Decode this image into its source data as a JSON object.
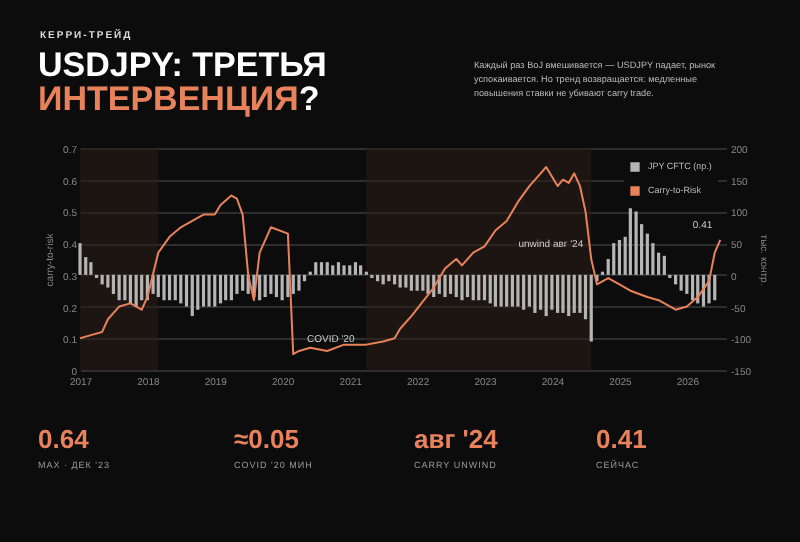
{
  "chart_data": [
    {
      "type": "line",
      "title": "USDJPY: ТРЕТЬЯ ИНТЕРВЕНЦИЯ?",
      "subtitle": "Каждый раз BoJ вмешивается — USDJPY падает, рынок успокаивается. Но тренд возвращается: медленные повышения ставки не убивают carry trade.",
      "ylabel": "carry-to-risk",
      "y2label": "тыс. контр.",
      "annotations": [
        "КЕРРИ-ТРЕЙД",
        {
          "text": "COVID '20",
          "x": "2020-04",
          "y": 0.05
        },
        {
          "text": "unwind авг '24",
          "x": "2024-08",
          "y": 0.35
        },
        {
          "text": "0.41",
          "x": "2026-07",
          "y": 0.41
        }
      ],
      "xlim": [
        "2017-01",
        "2026-08"
      ],
      "xticks": [
        "2017",
        "2018",
        "2019",
        "2020",
        "2021",
        "2022",
        "2023",
        "2024",
        "2025",
        "2026"
      ],
      "ylim": [
        0,
        0.7
      ],
      "yticks": [
        0,
        0.1,
        0.2,
        0.3,
        0.4,
        0.5,
        0.6,
        0.7
      ],
      "y2lim": [
        -150,
        200
      ],
      "y2ticks": [
        -150,
        -100,
        -50,
        0,
        50,
        100,
        150,
        200
      ],
      "grid": "y",
      "legend": "top right",
      "bands": [
        {
          "axis": "x",
          "from": "2017-01",
          "to": "2018-03",
          "color": "#2c1e16"
        },
        {
          "axis": "x",
          "from": "2021-04",
          "to": "2024-08",
          "color": "#2c1e16"
        }
      ],
      "series": [
        {
          "name": "JPY CFTC (пр.)",
          "type": "bar",
          "axis": "y2",
          "color": "#b5b5b5",
          "x": [
            "2017-01",
            "2017-02",
            "2017-03",
            "2017-04",
            "2017-05",
            "2017-06",
            "2017-07",
            "2017-08",
            "2017-09",
            "2017-10",
            "2017-11",
            "2017-12",
            "2018-01",
            "2018-02",
            "2018-03",
            "2018-04",
            "2018-05",
            "2018-06",
            "2018-07",
            "2018-08",
            "2018-09",
            "2018-10",
            "2018-11",
            "2018-12",
            "2019-01",
            "2019-02",
            "2019-03",
            "2019-04",
            "2019-05",
            "2019-06",
            "2019-07",
            "2019-08",
            "2019-09",
            "2019-10",
            "2019-11",
            "2019-12",
            "2020-01",
            "2020-02",
            "2020-03",
            "2020-04",
            "2020-05",
            "2020-06",
            "2020-07",
            "2020-08",
            "2020-09",
            "2020-10",
            "2020-11",
            "2020-12",
            "2021-01",
            "2021-02",
            "2021-03",
            "2021-04",
            "2021-05",
            "2021-06",
            "2021-07",
            "2021-08",
            "2021-09",
            "2021-10",
            "2021-11",
            "2021-12",
            "2022-01",
            "2022-02",
            "2022-03",
            "2022-04",
            "2022-05",
            "2022-06",
            "2022-07",
            "2022-08",
            "2022-09",
            "2022-10",
            "2022-11",
            "2022-12",
            "2023-01",
            "2023-02",
            "2023-03",
            "2023-04",
            "2023-05",
            "2023-06",
            "2023-07",
            "2023-08",
            "2023-09",
            "2023-10",
            "2023-11",
            "2023-12",
            "2024-01",
            "2024-02",
            "2024-03",
            "2024-04",
            "2024-05",
            "2024-06",
            "2024-07",
            "2024-08",
            "2024-09",
            "2024-10",
            "2024-11",
            "2024-12",
            "2025-01",
            "2025-02",
            "2025-03",
            "2025-04",
            "2025-05",
            "2025-06",
            "2025-07",
            "2025-08",
            "2025-09",
            "2025-10",
            "2025-11",
            "2025-12",
            "2026-01",
            "2026-02",
            "2026-03",
            "2026-04",
            "2026-05",
            "2026-06"
          ],
          "values": [
            50,
            28,
            20,
            -5,
            -15,
            -20,
            -30,
            -40,
            -40,
            -45,
            -50,
            -40,
            -40,
            -30,
            -35,
            -40,
            -40,
            -40,
            -45,
            -50,
            -65,
            -55,
            -50,
            -50,
            -50,
            -45,
            -40,
            -40,
            -30,
            -25,
            -30,
            -35,
            -40,
            -35,
            -30,
            -35,
            -40,
            -35,
            -30,
            -25,
            -10,
            5,
            20,
            20,
            20,
            15,
            20,
            15,
            15,
            20,
            15,
            5,
            -5,
            -10,
            -15,
            -10,
            -15,
            -20,
            -20,
            -25,
            -25,
            -25,
            -30,
            -35,
            -30,
            -35,
            -30,
            -35,
            -40,
            -35,
            -40,
            -40,
            -40,
            -45,
            -50,
            -50,
            -50,
            -50,
            -50,
            -55,
            -50,
            -60,
            -55,
            -65,
            -55,
            -60,
            -60,
            -65,
            -60,
            -60,
            -70,
            -105,
            -10,
            5,
            25,
            50,
            55,
            60,
            105,
            100,
            80,
            65,
            50,
            35,
            30,
            -5,
            -15,
            -25,
            -30,
            -40,
            -45,
            -50,
            -45,
            -40
          ]
        },
        {
          "name": "Carry-to-Risk",
          "type": "line",
          "color": "#e8825a",
          "x": [
            "2017-01",
            "2017-03",
            "2017-05",
            "2017-06",
            "2017-08",
            "2017-10",
            "2017-12",
            "2018-01",
            "2018-03",
            "2018-05",
            "2018-07",
            "2018-09",
            "2018-11",
            "2019-01",
            "2019-02",
            "2019-04",
            "2019-05",
            "2019-06",
            "2019-07",
            "2019-08",
            "2019-09",
            "2019-11",
            "2020-02",
            "2020-03",
            "2020-04",
            "2020-06",
            "2020-09",
            "2020-12",
            "2021-04",
            "2021-07",
            "2021-09",
            "2021-10",
            "2021-12",
            "2022-04",
            "2022-06",
            "2022-08",
            "2022-09",
            "2022-11",
            "2023-01",
            "2023-03",
            "2023-05",
            "2023-07",
            "2023-09",
            "2023-11",
            "2023-12",
            "2024-01",
            "2024-02",
            "2024-03",
            "2024-04",
            "2024-05",
            "2024-06",
            "2024-07",
            "2024-08",
            "2024-09",
            "2024-11",
            "2025-01",
            "2025-03",
            "2025-06",
            "2025-08",
            "2025-11",
            "2026-01",
            "2026-03",
            "2026-05",
            "2026-06",
            "2026-07"
          ],
          "values": [
            0.1,
            0.11,
            0.12,
            0.16,
            0.2,
            0.21,
            0.19,
            0.23,
            0.37,
            0.42,
            0.45,
            0.47,
            0.49,
            0.49,
            0.52,
            0.55,
            0.54,
            0.49,
            0.3,
            0.22,
            0.37,
            0.45,
            0.43,
            0.05,
            0.06,
            0.07,
            0.06,
            0.08,
            0.08,
            0.09,
            0.1,
            0.13,
            0.17,
            0.26,
            0.32,
            0.35,
            0.33,
            0.37,
            0.39,
            0.44,
            0.47,
            0.53,
            0.58,
            0.62,
            0.64,
            0.61,
            0.58,
            0.6,
            0.59,
            0.62,
            0.58,
            0.5,
            0.35,
            0.27,
            0.29,
            0.27,
            0.25,
            0.23,
            0.22,
            0.19,
            0.2,
            0.23,
            0.28,
            0.37,
            0.41
          ]
        }
      ]
    },
    {
      "type": "other",
      "annotations": [
        "0.64",
        "MAX · ДЕК '23",
        "≈0.05",
        "COVID '20 МИН",
        "авг '24",
        "CARRY UNWIND",
        "0.41",
        "СЕЙЧАС"
      ]
    }
  ]
}
